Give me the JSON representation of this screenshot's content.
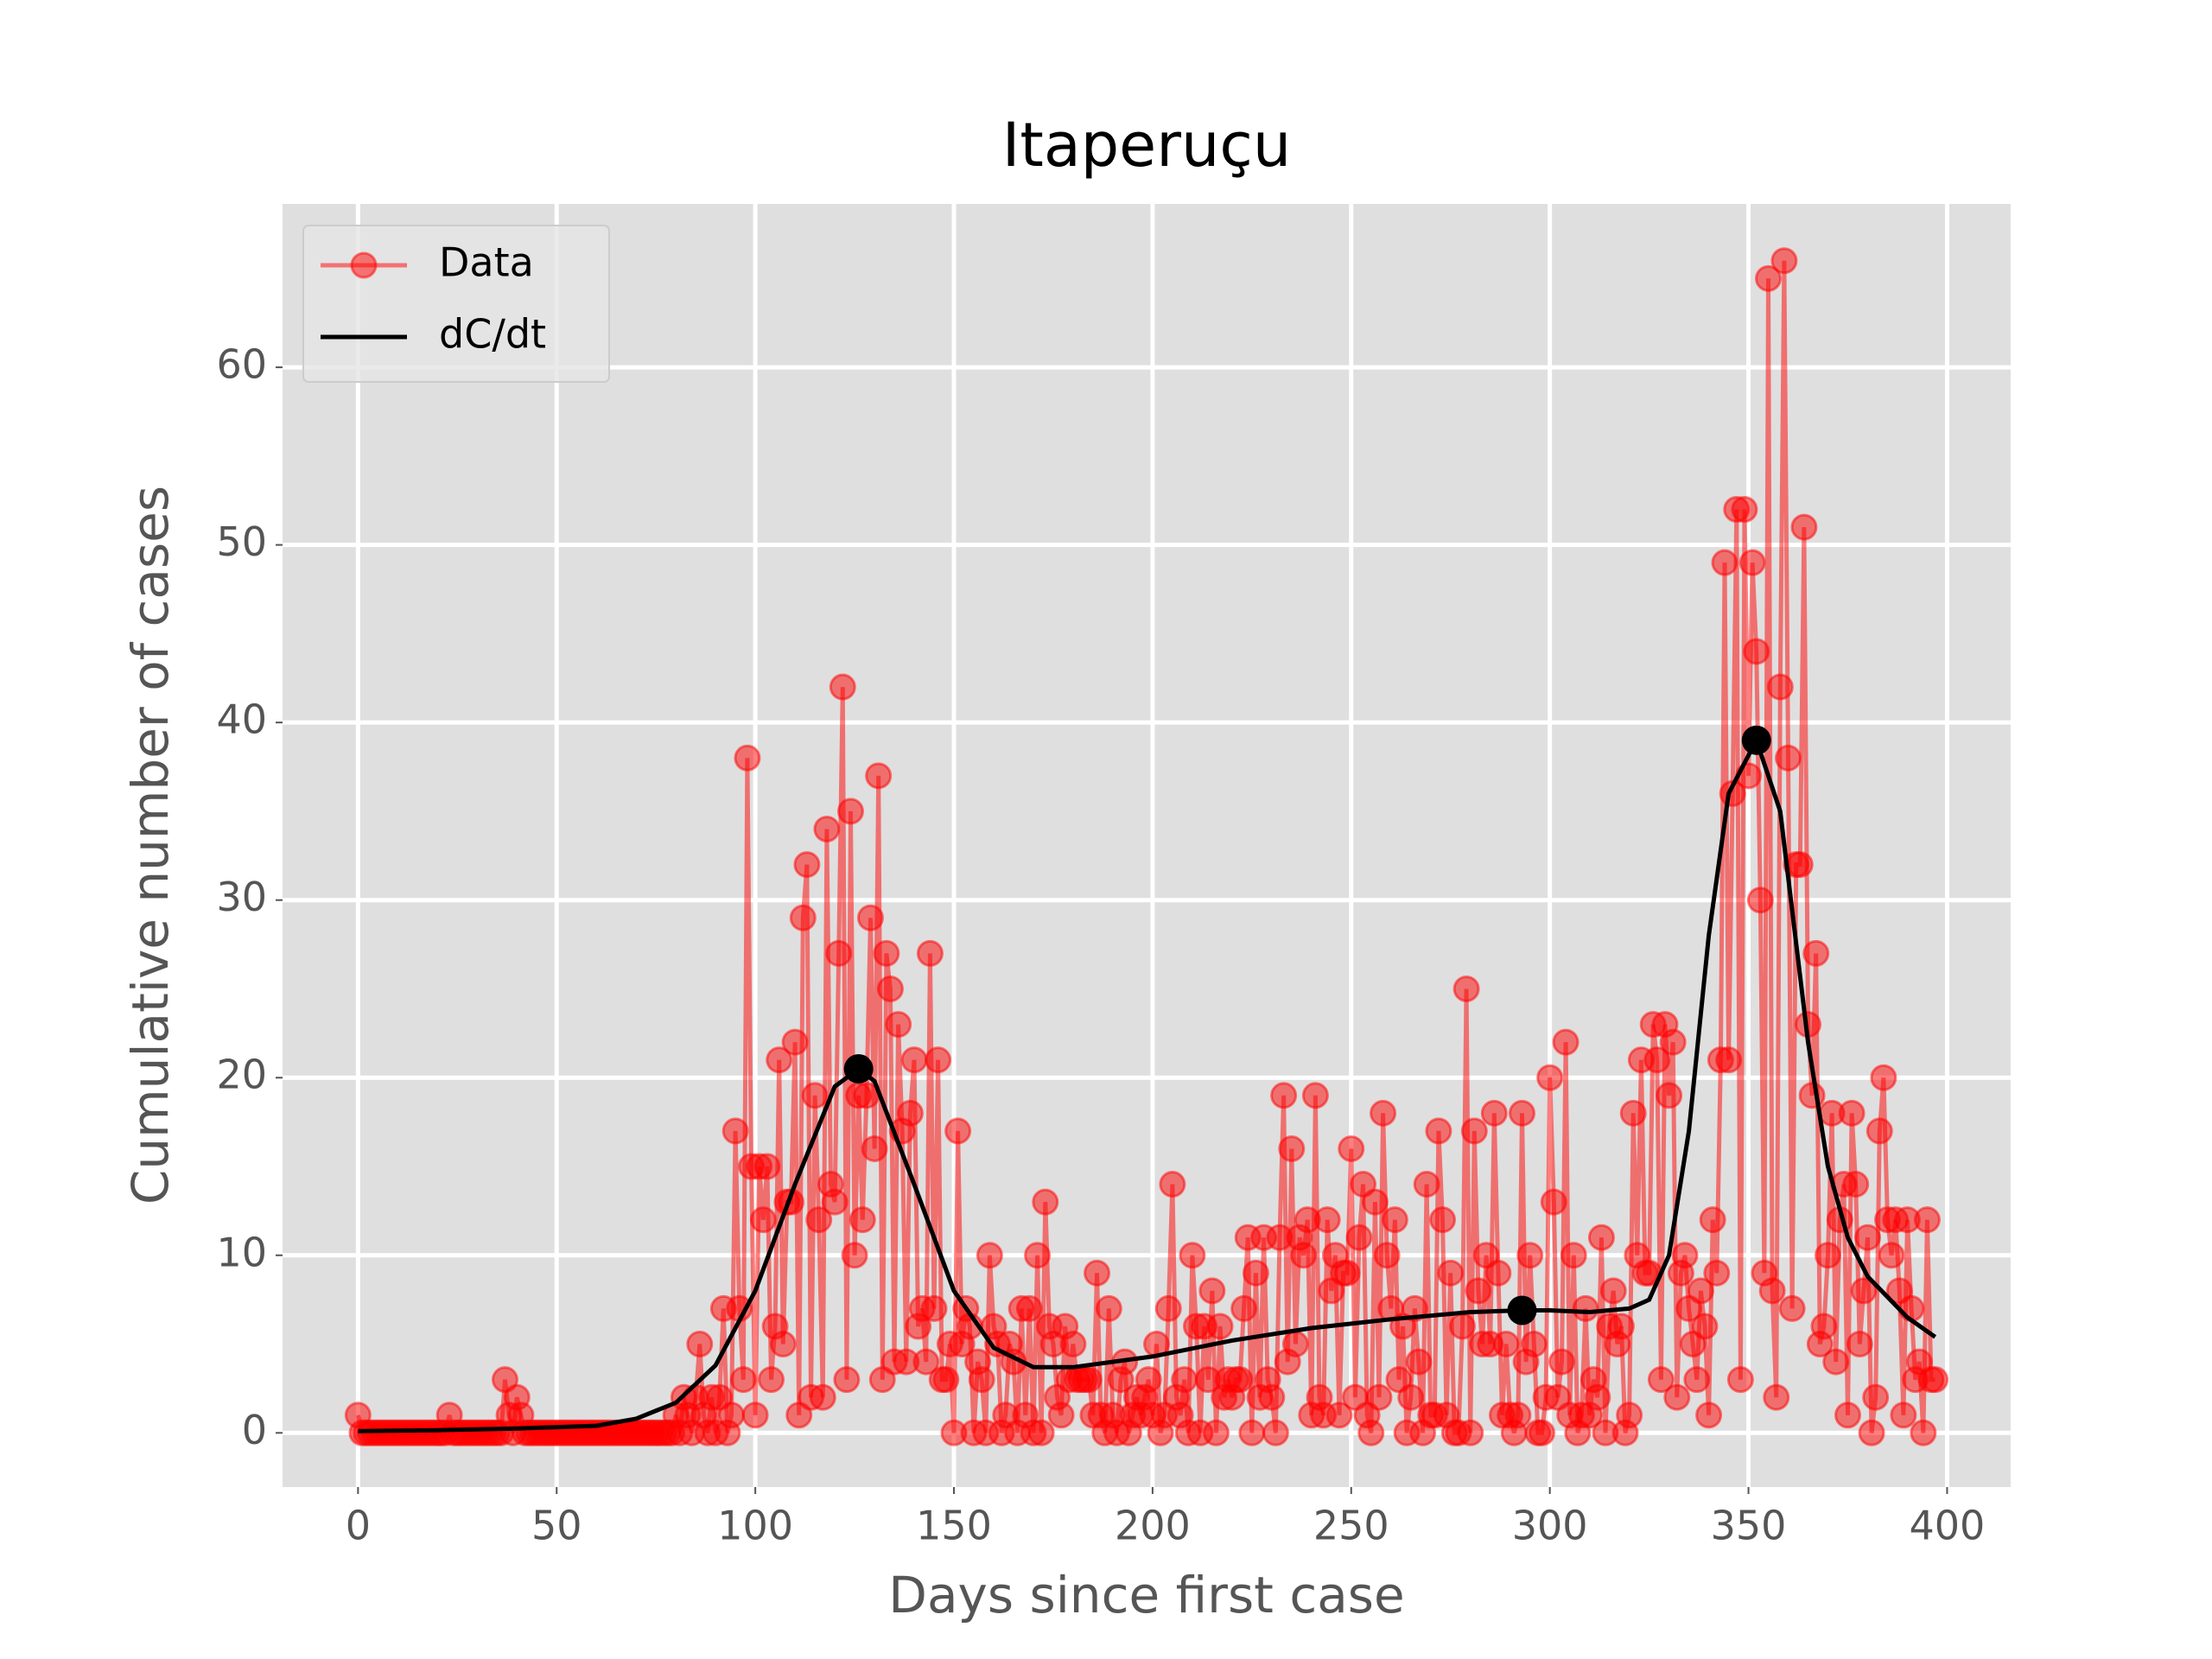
{
  "chart_data": {
    "type": "line",
    "title": "Itaperuçu",
    "x_label": "Days since first case",
    "y_label": "Cumulative number of cases",
    "xlim": [
      -19,
      416
    ],
    "ylim": [
      -3.05,
      69.2
    ],
    "xticks": [
      0,
      50,
      100,
      150,
      200,
      250,
      300,
      350,
      400
    ],
    "yticks": [
      0,
      10,
      20,
      30,
      40,
      50,
      60
    ],
    "grid": true,
    "legend": "upper left",
    "series": [
      {
        "name": "Data",
        "color": "#ff0000",
        "marker": true,
        "x": [
          0,
          1,
          2,
          3,
          4,
          5,
          6,
          7,
          8,
          9,
          10,
          11,
          12,
          13,
          14,
          15,
          16,
          17,
          18,
          19,
          20,
          21,
          22,
          23,
          24,
          25,
          26,
          27,
          28,
          29,
          30,
          31,
          32,
          33,
          34,
          35,
          36,
          37,
          38,
          39,
          40,
          41,
          42,
          43,
          44,
          45,
          46,
          47,
          48,
          49,
          50,
          51,
          52,
          53,
          54,
          55,
          56,
          57,
          58,
          59,
          60,
          61,
          62,
          63,
          64,
          65,
          66,
          67,
          68,
          69,
          70,
          71,
          72,
          73,
          74,
          75,
          76,
          77,
          78,
          79,
          80,
          81,
          82,
          83,
          84,
          85,
          86,
          87,
          88,
          89,
          90,
          91,
          92,
          93,
          94,
          95,
          96,
          97,
          98,
          99,
          100,
          101,
          102,
          103,
          104,
          105,
          106,
          107,
          108,
          109,
          110,
          111,
          112,
          113,
          114,
          115,
          116,
          117,
          118,
          119,
          120,
          121,
          122,
          123,
          124,
          125,
          126,
          127,
          128,
          129,
          130,
          131,
          132,
          133,
          134,
          135,
          136,
          137,
          138,
          139,
          140,
          141,
          142,
          143,
          144,
          145,
          146,
          147,
          148,
          149,
          150,
          151,
          152,
          153,
          154,
          155,
          156,
          157,
          158,
          159,
          160,
          161,
          162,
          163,
          164,
          165,
          166,
          167,
          168,
          169,
          170,
          171,
          172,
          173,
          174,
          175,
          176,
          177,
          178,
          179,
          180,
          181,
          182,
          183,
          184,
          185,
          186,
          187,
          188,
          189,
          190,
          191,
          192,
          193,
          194,
          195,
          196,
          197,
          198,
          199,
          200,
          201,
          202,
          203,
          204,
          205,
          206,
          207,
          208,
          209,
          210,
          211,
          212,
          213,
          214,
          215,
          216,
          217,
          218,
          219,
          220,
          221,
          222,
          223,
          224,
          225,
          226,
          227,
          228,
          229,
          230,
          231,
          232,
          233,
          234,
          235,
          236,
          237,
          238,
          239,
          240,
          241,
          242,
          243,
          244,
          245,
          246,
          247,
          248,
          249,
          250,
          251,
          252,
          253,
          254,
          255,
          256,
          257,
          258,
          259,
          260,
          261,
          262,
          263,
          264,
          265,
          266,
          267,
          268,
          269,
          270,
          271,
          272,
          273,
          274,
          275,
          276,
          277,
          278,
          279,
          280,
          281,
          282,
          283,
          284,
          285,
          286,
          287,
          288,
          289,
          290,
          291,
          292,
          293,
          294,
          295,
          296,
          297,
          298,
          299,
          300,
          301,
          302,
          303,
          304,
          305,
          306,
          307,
          308,
          309,
          310,
          311,
          312,
          313,
          314,
          315,
          316,
          317,
          318,
          319,
          320,
          321,
          322,
          323,
          324,
          325,
          326,
          327,
          328,
          329,
          330,
          331,
          332,
          333,
          334,
          335,
          336,
          337,
          338,
          339,
          340,
          341,
          342,
          343,
          344,
          345,
          346,
          347,
          348,
          349,
          350,
          351,
          352,
          353,
          354,
          355,
          356,
          357,
          358,
          359,
          360,
          361,
          362,
          363,
          364,
          365,
          366,
          367,
          368,
          369,
          370,
          371,
          372,
          373,
          374,
          375,
          376,
          377,
          378,
          379,
          380,
          381,
          382,
          383,
          384,
          385,
          386,
          387,
          388,
          389,
          390,
          391,
          392,
          393,
          394,
          395,
          396,
          397
        ],
        "values": [
          1,
          0,
          0,
          0,
          0,
          0,
          0,
          0,
          0,
          0,
          0,
          0,
          0,
          0,
          0,
          0,
          0,
          0,
          0,
          0,
          0,
          0,
          0,
          1,
          0,
          0,
          0,
          0,
          0,
          0,
          0,
          0,
          0,
          0,
          0,
          0,
          0,
          3,
          1,
          0,
          2,
          1,
          0,
          0,
          0,
          0,
          0,
          0,
          0,
          0,
          0,
          0,
          0,
          0,
          0,
          0,
          0,
          0,
          0,
          0,
          0,
          0,
          0,
          0,
          0,
          0,
          0,
          0,
          0,
          0,
          0,
          0,
          0,
          0,
          0,
          0,
          0,
          0,
          0,
          0,
          1,
          0,
          2,
          1,
          0,
          2,
          5,
          1,
          0,
          2,
          0,
          2,
          7,
          0,
          1,
          17,
          7,
          3,
          38,
          15,
          1,
          15,
          12,
          15,
          3,
          6,
          21,
          5,
          13,
          13,
          22,
          1,
          29,
          32,
          2,
          19,
          12,
          2,
          34,
          14,
          13,
          27,
          42,
          3,
          35,
          10,
          19,
          12,
          19,
          29,
          16,
          37,
          3,
          27,
          25,
          4,
          23,
          17,
          4,
          18,
          21,
          6,
          7,
          4,
          27,
          7,
          21,
          3,
          3,
          5,
          0,
          17,
          5,
          7,
          6,
          0,
          4,
          3,
          0,
          10,
          6,
          5,
          0,
          1,
          5,
          4,
          0,
          7,
          1,
          7,
          0,
          10,
          0,
          13,
          6,
          5,
          2,
          1,
          6,
          3,
          5,
          3,
          3,
          3,
          3,
          1,
          9,
          1,
          0,
          7,
          1,
          0,
          3,
          4,
          0,
          1,
          2,
          1,
          2,
          3,
          1,
          5,
          0,
          1,
          7,
          14,
          2,
          1,
          3,
          0,
          10,
          6,
          0,
          6,
          3,
          8,
          0,
          6,
          2,
          3,
          2,
          3,
          3,
          7,
          11,
          0,
          9,
          2,
          11,
          3,
          2,
          0,
          11,
          19,
          4,
          16,
          5,
          11,
          10,
          12,
          1,
          19,
          2,
          1,
          12,
          8,
          10,
          1,
          9,
          9,
          16,
          2,
          11,
          14,
          1,
          0,
          13,
          2,
          18,
          10,
          7,
          12,
          3,
          6,
          0,
          2,
          7,
          4,
          0,
          14,
          1,
          1,
          17,
          12,
          1,
          9,
          0,
          0,
          6,
          25,
          0,
          17,
          8,
          5,
          10,
          5,
          18,
          9,
          1,
          5,
          1,
          0,
          1,
          18,
          4,
          10,
          5,
          0,
          0,
          2,
          20,
          13,
          2,
          4,
          22,
          1,
          10,
          0,
          1,
          7,
          1,
          3,
          2,
          11,
          0,
          6,
          8,
          5,
          6,
          0,
          1,
          18,
          10,
          21,
          9,
          9,
          23,
          21,
          3,
          23,
          19,
          22,
          2,
          9,
          10,
          7,
          5,
          3,
          8,
          6,
          1,
          12,
          9,
          21,
          49,
          21,
          36,
          52,
          3,
          52,
          37,
          49,
          44,
          30,
          9,
          65,
          8,
          2,
          42,
          66,
          38,
          7,
          32,
          32,
          51,
          23,
          19,
          27,
          5,
          6,
          10,
          18,
          4,
          12,
          14,
          1,
          18,
          14,
          5,
          8,
          11,
          0,
          2,
          17,
          20,
          12,
          10,
          12,
          8,
          1,
          12,
          7,
          3,
          4,
          0,
          12,
          3,
          3
        ]
      },
      {
        "name": "dC/dt",
        "color": "#000000",
        "marker": false,
        "x": [
          0,
          20,
          40,
          60,
          70,
          80,
          90,
          100,
          110,
          120,
          126,
          130,
          140,
          150,
          160,
          170,
          180,
          200,
          220,
          240,
          260,
          280,
          293,
          300,
          310,
          320,
          325,
          330,
          335,
          340,
          345,
          352,
          358,
          365,
          370,
          375,
          380,
          390,
          397
        ],
        "values": [
          0.1,
          0.15,
          0.25,
          0.4,
          0.8,
          1.7,
          3.8,
          8,
          14,
          19.5,
          20.5,
          19.8,
          14,
          8,
          4.8,
          3.7,
          3.7,
          4.3,
          5.2,
          5.9,
          6.4,
          6.8,
          6.9,
          6.9,
          6.8,
          7,
          7.5,
          10,
          17,
          28,
          36,
          39,
          35,
          22,
          15,
          11,
          8.8,
          6.5,
          5.4
        ]
      }
    ],
    "peaks": {
      "color": "#000000",
      "x": [
        126,
        293,
        352
      ],
      "values": [
        20.5,
        6.9,
        39
      ]
    }
  }
}
